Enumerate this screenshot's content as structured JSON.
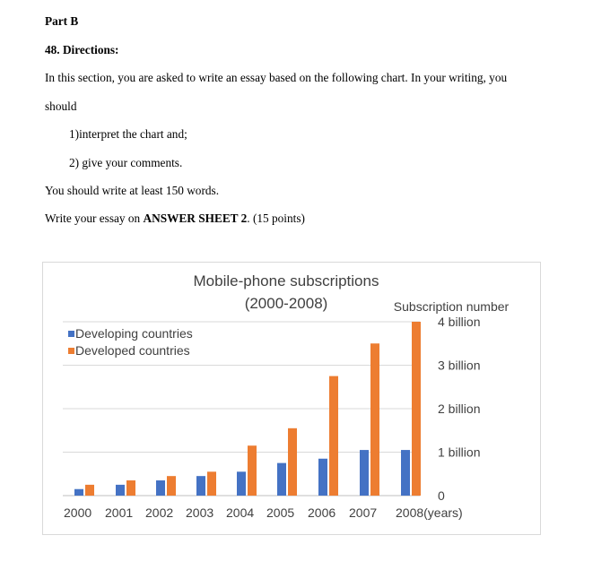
{
  "document": {
    "part": "Part B",
    "question": "48. Directions:",
    "instruction_line1": "In this section, you are asked to write an essay based on the following chart. In your writing, you",
    "instruction_line2": "should",
    "item1": "1)interpret the chart and;",
    "item2": "2) give your comments.",
    "min_words": "You should write at least 150 words.",
    "answer_prefix": "Write your essay on ",
    "answer_sheet": "ANSWER SHEET 2",
    "answer_suffix": ". (15 points)"
  },
  "chart_data": {
    "type": "bar",
    "title": "Mobile-phone subscriptions",
    "subtitle": "(2000-2008)",
    "ylabel": "Subscription number",
    "categories": [
      "2000",
      "2001",
      "2002",
      "2003",
      "2004",
      "2005",
      "2006",
      "2007",
      "2008(years)"
    ],
    "y_ticks": [
      "0",
      "1 billion",
      "2 billion",
      "3 billion",
      "4 billion"
    ],
    "ylim": [
      0,
      4
    ],
    "y_axis_side": "right",
    "legend_position": "left",
    "grid": true,
    "series": [
      {
        "name": "Developing countries",
        "color": "#4472c4",
        "values": [
          0.15,
          0.25,
          0.35,
          0.45,
          0.55,
          0.75,
          0.85,
          1.05,
          1.05
        ]
      },
      {
        "name": "Developed countries",
        "color": "#ed7d31",
        "values": [
          0.25,
          0.35,
          0.45,
          0.55,
          1.15,
          1.55,
          2.75,
          3.5,
          4.0
        ]
      }
    ]
  }
}
